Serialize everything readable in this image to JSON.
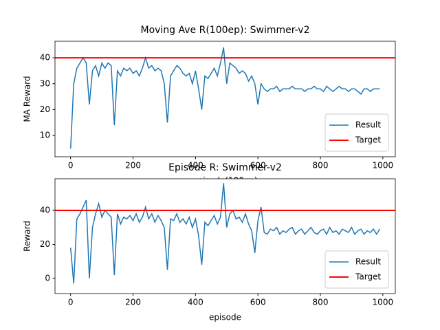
{
  "chart_data": [
    {
      "type": "line",
      "title": "Moving Ave R(100ep): Swimmer-v2",
      "xlabel": "episode(100ep)",
      "ylabel": "MA Reward",
      "x": [
        0,
        10,
        20,
        30,
        40,
        50,
        60,
        70,
        80,
        90,
        100,
        110,
        120,
        130,
        140,
        150,
        160,
        170,
        180,
        190,
        200,
        210,
        220,
        230,
        240,
        250,
        260,
        270,
        280,
        290,
        300,
        310,
        320,
        330,
        340,
        350,
        360,
        370,
        380,
        390,
        400,
        410,
        420,
        430,
        440,
        450,
        460,
        470,
        480,
        490,
        500,
        510,
        520,
        530,
        540,
        550,
        560,
        570,
        580,
        590,
        600,
        610,
        620,
        630,
        640,
        650,
        660,
        670,
        680,
        690,
        700,
        710,
        720,
        730,
        740,
        750,
        760,
        770,
        780,
        790,
        800,
        810,
        820,
        830,
        840,
        850,
        860,
        870,
        880,
        890,
        900,
        910,
        920,
        930,
        940,
        950,
        960,
        970,
        980,
        990
      ],
      "series": [
        {
          "name": "Result",
          "color": "#1f77b4",
          "values": [
            5,
            30,
            36,
            38,
            40,
            38,
            22,
            35,
            37,
            33,
            38,
            36,
            38,
            37,
            14,
            35,
            33,
            36,
            35,
            36,
            34,
            35,
            33,
            36,
            40,
            36,
            37,
            35,
            36,
            35,
            30,
            15,
            33,
            35,
            37,
            36,
            34,
            33,
            34,
            30,
            35,
            28,
            20,
            33,
            32,
            34,
            36,
            33,
            38,
            44,
            30,
            38,
            37,
            36,
            34,
            35,
            34,
            31,
            33,
            30,
            22,
            30,
            28,
            27,
            28,
            28,
            29,
            27,
            28,
            28,
            28,
            29,
            28,
            28,
            28,
            27,
            28,
            28,
            29,
            28,
            28,
            27,
            29,
            28,
            27,
            28,
            29,
            28,
            28,
            27,
            28,
            28,
            27,
            26,
            28,
            28,
            27,
            28,
            28,
            28
          ]
        }
      ],
      "hline": {
        "name": "Target",
        "value": 40,
        "color": "#ff0000"
      },
      "xlim": [
        -50,
        1040
      ],
      "ylim": [
        1.8,
        46.4
      ],
      "xticks": [
        0,
        200,
        400,
        600,
        800,
        1000
      ],
      "yticks": [
        10,
        20,
        30,
        40
      ],
      "legend": "lower right"
    },
    {
      "type": "line",
      "title": "Episode R: Swimmer-v2",
      "xlabel": "episode",
      "ylabel": "Reward",
      "x": [
        0,
        10,
        20,
        30,
        40,
        50,
        60,
        70,
        80,
        90,
        100,
        110,
        120,
        130,
        140,
        150,
        160,
        170,
        180,
        190,
        200,
        210,
        220,
        230,
        240,
        250,
        260,
        270,
        280,
        290,
        300,
        310,
        320,
        330,
        340,
        350,
        360,
        370,
        380,
        390,
        400,
        410,
        420,
        430,
        440,
        450,
        460,
        470,
        480,
        490,
        500,
        510,
        520,
        530,
        540,
        550,
        560,
        570,
        580,
        590,
        600,
        610,
        620,
        630,
        640,
        650,
        660,
        670,
        680,
        690,
        700,
        710,
        720,
        730,
        740,
        750,
        760,
        770,
        780,
        790,
        800,
        810,
        820,
        830,
        840,
        850,
        860,
        870,
        880,
        890,
        900,
        910,
        920,
        930,
        940,
        950,
        960,
        970,
        980,
        990
      ],
      "series": [
        {
          "name": "Result",
          "color": "#1f77b4",
          "values": [
            18,
            -3,
            35,
            38,
            42,
            46,
            0,
            30,
            38,
            44,
            36,
            40,
            38,
            36,
            2,
            38,
            32,
            36,
            35,
            37,
            34,
            38,
            33,
            36,
            42,
            35,
            38,
            33,
            37,
            34,
            30,
            5,
            35,
            34,
            38,
            33,
            35,
            32,
            36,
            30,
            35,
            25,
            8,
            33,
            31,
            34,
            37,
            32,
            36,
            56,
            30,
            38,
            40,
            35,
            36,
            33,
            38,
            32,
            28,
            15,
            34,
            42,
            27,
            26,
            29,
            28,
            30,
            26,
            28,
            27,
            29,
            30,
            26,
            28,
            29,
            26,
            28,
            30,
            27,
            26,
            28,
            29,
            26,
            30,
            27,
            28,
            26,
            29,
            28,
            27,
            30,
            26,
            28,
            29,
            26,
            28,
            27,
            29,
            26,
            29
          ]
        }
      ],
      "hline": {
        "name": "Target",
        "value": 40,
        "color": "#ff0000"
      },
      "xlim": [
        -50,
        1040
      ],
      "ylim": [
        -8.9,
        58.6
      ],
      "xticks": [
        0,
        200,
        400,
        600,
        800,
        1000
      ],
      "yticks": [
        0,
        20,
        40
      ],
      "legend": "lower right"
    }
  ]
}
